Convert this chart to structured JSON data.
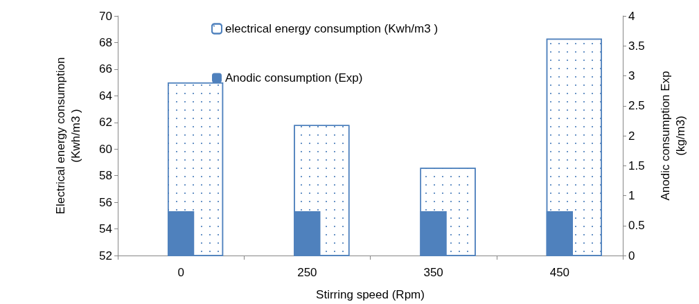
{
  "chart_data": {
    "type": "bar",
    "xlabel": "Stirring speed (Rpm)",
    "ylabel": "Electrical energy consumption\n(Kwh/m3 )",
    "y2label": "Anodic consumption Exp\n(kg/m3)",
    "categories": [
      "0",
      "250",
      "350",
      "450"
    ],
    "series": [
      {
        "name": "electrical energy consumption (Kwh/m3 )",
        "color": "#4f81bd",
        "values": [
          65.0,
          61.8,
          58.6,
          68.3
        ]
      },
      {
        "name": "Anodic consumption (Exp)",
        "color": "#4f81bd",
        "axis": "y2",
        "values": [
          0.74,
          0.74,
          0.74,
          0.74
        ]
      }
    ],
    "ylim": [
      52,
      70
    ],
    "yticks": [
      52,
      54,
      56,
      58,
      60,
      62,
      64,
      66,
      68,
      70
    ],
    "y2lim": [
      0,
      4
    ],
    "y2ticks": [
      0,
      0.5,
      1,
      1.5,
      2,
      2.5,
      3,
      3.5,
      4
    ],
    "grid": false,
    "legend": "top"
  }
}
